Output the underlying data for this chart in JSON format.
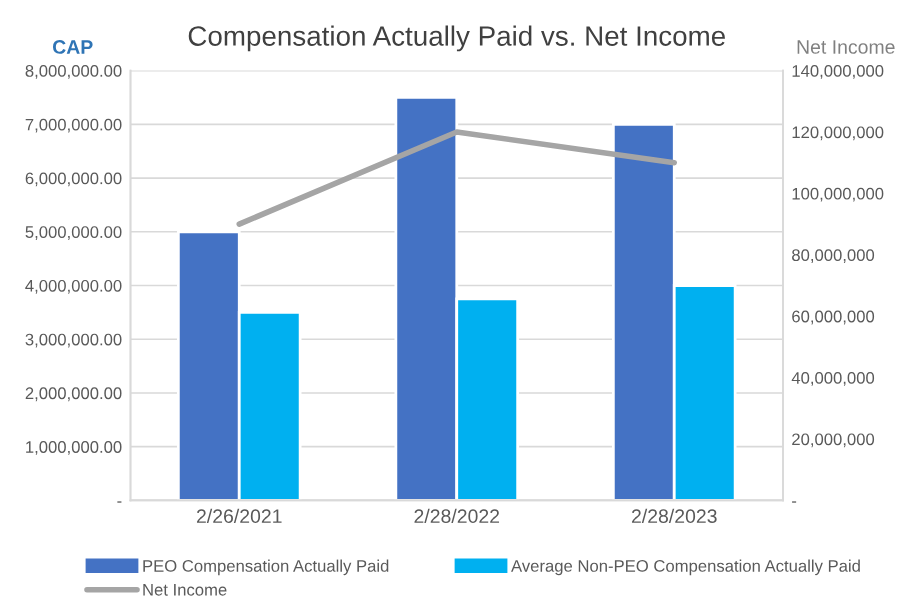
{
  "chart_data": {
    "type": "bar",
    "title": "Compensation Actually Paid vs. Net Income",
    "ylabel": "CAP",
    "y2label": "Net Income",
    "categories": [
      "2/26/2021",
      "2/28/2022",
      "2/28/2023"
    ],
    "series": [
      {
        "name": "PEO Compensation Actually Paid",
        "color": "#4472c4",
        "values": [
          5000000,
          7500000,
          7000000
        ]
      },
      {
        "name": "Average Non-PEO Compensation Actually Paid",
        "color": "#00b0f0",
        "values": [
          3500000,
          3750000,
          4000000
        ]
      },
      {
        "name": "Net Income",
        "type": "line",
        "axis": "y2",
        "color": "#a5a5a5",
        "values": [
          90000000,
          120000000,
          110000000
        ]
      }
    ],
    "ylim": [
      0,
      8000000
    ],
    "yticks": [
      {
        "value": 0,
        "label": "-"
      },
      {
        "value": 1000000,
        "label": "1,000,000.00"
      },
      {
        "value": 2000000,
        "label": "2,000,000.00"
      },
      {
        "value": 3000000,
        "label": "3,000,000.00"
      },
      {
        "value": 4000000,
        "label": "4,000,000.00"
      },
      {
        "value": 5000000,
        "label": "5,000,000.00"
      },
      {
        "value": 6000000,
        "label": "6,000,000.00"
      },
      {
        "value": 7000000,
        "label": "7,000,000.00"
      },
      {
        "value": 8000000,
        "label": "8,000,000.00"
      }
    ],
    "y2lim": [
      0,
      140000000
    ],
    "y2ticks": [
      {
        "value": 0,
        "label": "-"
      },
      {
        "value": 20000000,
        "label": "20,000,000"
      },
      {
        "value": 40000000,
        "label": "40,000,000"
      },
      {
        "value": 60000000,
        "label": "60,000,000"
      },
      {
        "value": 80000000,
        "label": "80,000,000"
      },
      {
        "value": 100000000,
        "label": "100,000,000"
      },
      {
        "value": 120000000,
        "label": "120,000,000"
      },
      {
        "value": 140000000,
        "label": "140,000,000"
      }
    ],
    "grid": "y",
    "legend": "bottom",
    "marker": "none",
    "line_style": "solid"
  }
}
